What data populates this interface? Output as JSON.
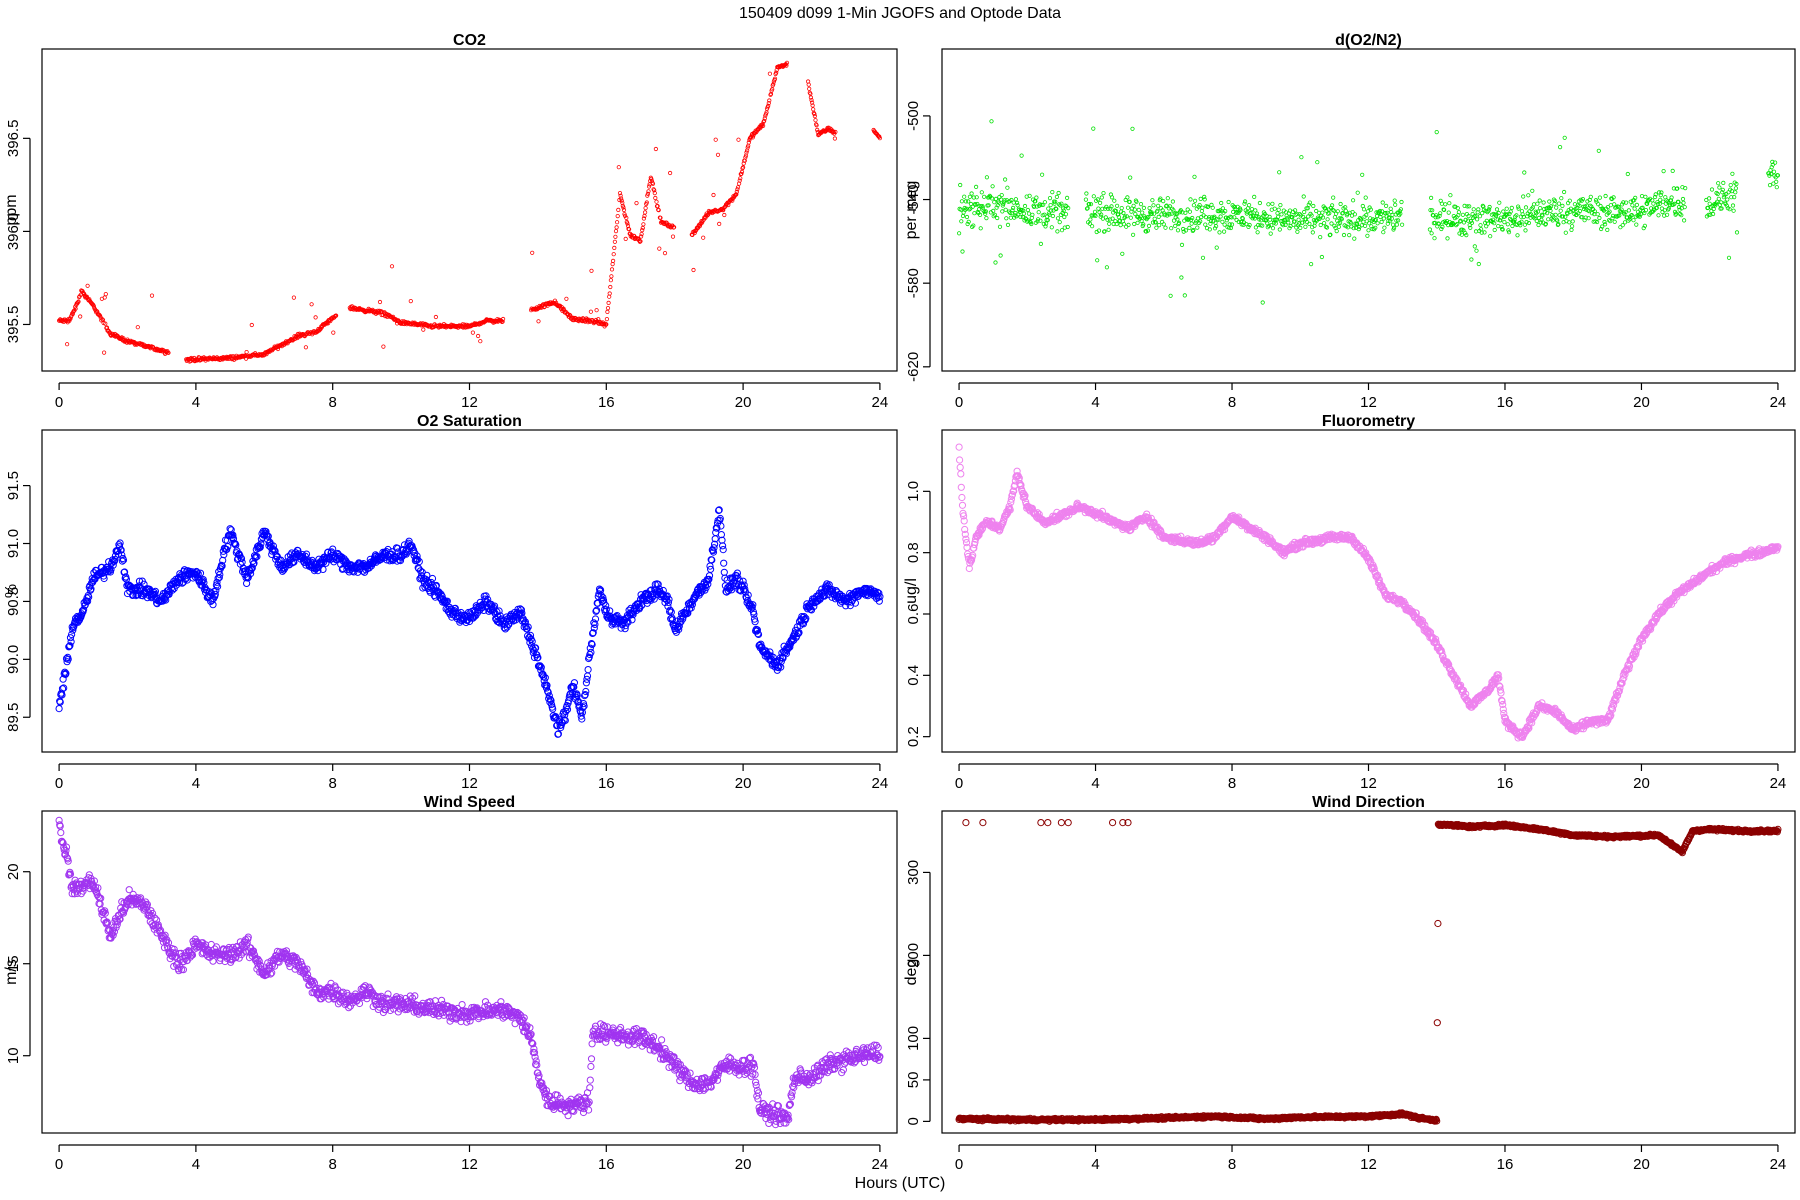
{
  "figure": {
    "title": "150409   d099   1-Min  JGOFS and Optode Data",
    "xlabel": "Hours (UTC)"
  },
  "chart_data": [
    {
      "id": "co2",
      "type": "scatter",
      "title": "CO2",
      "ylabel": "ppm",
      "color": "#ff0000",
      "marker_size": "small",
      "xlim": [
        -0.5,
        24.5
      ],
      "ylim": [
        395.25,
        396.98
      ],
      "xticks": [
        0,
        4,
        8,
        12,
        16,
        20,
        24
      ],
      "yticks": [
        395.5,
        396.0,
        396.5
      ],
      "ytick_labels": [
        "395.5",
        "396.0",
        "396.5"
      ],
      "gaps": [
        [
          3.2,
          3.7
        ],
        [
          8.1,
          8.5
        ],
        [
          13.0,
          13.8
        ],
        [
          18.0,
          18.5
        ],
        [
          21.3,
          21.9
        ],
        [
          22.7,
          23.8
        ]
      ],
      "noise": 0.008,
      "spike_rate": 0.06,
      "spike_amp": 0.25,
      "profile": [
        [
          0.0,
          395.52
        ],
        [
          0.3,
          395.52
        ],
        [
          0.55,
          395.62
        ],
        [
          0.65,
          395.68
        ],
        [
          1.0,
          395.6
        ],
        [
          1.5,
          395.45
        ],
        [
          2.0,
          395.41
        ],
        [
          3.0,
          395.36
        ],
        [
          3.2,
          395.35
        ],
        [
          3.7,
          395.31
        ],
        [
          5.0,
          395.32
        ],
        [
          6.0,
          395.34
        ],
        [
          7.0,
          395.44
        ],
        [
          7.5,
          395.46
        ],
        [
          8.1,
          395.55
        ],
        [
          8.5,
          395.59
        ],
        [
          9.5,
          395.56
        ],
        [
          10.0,
          395.51
        ],
        [
          11.0,
          395.49
        ],
        [
          12.0,
          395.49
        ],
        [
          12.5,
          395.52
        ],
        [
          13.0,
          395.52
        ],
        [
          13.8,
          395.58
        ],
        [
          14.5,
          395.62
        ],
        [
          15.0,
          395.53
        ],
        [
          15.5,
          395.52
        ],
        [
          16.0,
          395.5
        ],
        [
          16.2,
          395.85
        ],
        [
          16.4,
          396.2
        ],
        [
          16.7,
          395.98
        ],
        [
          17.0,
          395.95
        ],
        [
          17.3,
          396.3
        ],
        [
          17.6,
          396.05
        ],
        [
          18.0,
          396.02
        ],
        [
          18.5,
          395.98
        ],
        [
          19.0,
          396.1
        ],
        [
          19.4,
          396.12
        ],
        [
          19.8,
          396.2
        ],
        [
          20.2,
          396.5
        ],
        [
          20.6,
          396.58
        ],
        [
          21.0,
          396.88
        ],
        [
          21.3,
          396.9
        ],
        [
          21.9,
          396.8
        ],
        [
          22.2,
          396.52
        ],
        [
          22.5,
          396.55
        ],
        [
          22.7,
          396.53
        ],
        [
          23.8,
          396.55
        ],
        [
          24.0,
          396.5
        ]
      ]
    },
    {
      "id": "o2n2",
      "type": "scatter",
      "title": "d(O2/N2)",
      "ylabel": "per meg",
      "color": "#00e000",
      "marker_size": "small",
      "xlim": [
        -0.5,
        24.5
      ],
      "ylim": [
        -622,
        -468
      ],
      "xticks": [
        0,
        4,
        8,
        12,
        16,
        20,
        24
      ],
      "yticks": [
        -620,
        -580,
        -540,
        -500
      ],
      "ytick_labels": [
        "-620",
        "-580",
        "-540",
        "-500"
      ],
      "gaps": [
        [
          3.2,
          3.7
        ],
        [
          13.0,
          13.8
        ],
        [
          21.3,
          21.9
        ],
        [
          22.8,
          23.7
        ]
      ],
      "noise": 7,
      "spike_rate": 0.05,
      "spike_amp": 38,
      "profile": [
        [
          0.0,
          -545
        ],
        [
          1.0,
          -542
        ],
        [
          2.0,
          -545
        ],
        [
          3.2,
          -547
        ],
        [
          3.7,
          -546
        ],
        [
          6.0,
          -548
        ],
        [
          8.0,
          -547
        ],
        [
          10.0,
          -550
        ],
        [
          12.0,
          -549
        ],
        [
          13.0,
          -548
        ],
        [
          13.8,
          -549
        ],
        [
          16.0,
          -549
        ],
        [
          17.0,
          -547
        ],
        [
          18.0,
          -545
        ],
        [
          19.0,
          -546
        ],
        [
          20.0,
          -545
        ],
        [
          21.3,
          -540
        ],
        [
          21.9,
          -543
        ],
        [
          22.8,
          -537
        ],
        [
          23.7,
          -530
        ],
        [
          24.0,
          -528
        ]
      ]
    },
    {
      "id": "o2sat",
      "type": "scatter",
      "title": "O2 Saturation",
      "ylabel": "%",
      "color": "#0000ff",
      "marker_size": "large",
      "xlim": [
        -0.5,
        24.5
      ],
      "ylim": [
        89.2,
        91.98
      ],
      "xticks": [
        0,
        4,
        8,
        12,
        16,
        20,
        24
      ],
      "yticks": [
        89.5,
        90.0,
        90.5,
        91.0,
        91.5
      ],
      "ytick_labels": [
        "89.5",
        "90.0",
        "90.5",
        "91.0",
        "91.5"
      ],
      "gaps": [],
      "noise": 0.05,
      "spike_rate": 0.0,
      "spike_amp": 0.0,
      "profile": [
        [
          0.0,
          89.6
        ],
        [
          0.2,
          89.9
        ],
        [
          0.4,
          90.3
        ],
        [
          0.7,
          90.4
        ],
        [
          1.0,
          90.7
        ],
        [
          1.5,
          90.8
        ],
        [
          1.8,
          91.0
        ],
        [
          2.0,
          90.6
        ],
        [
          2.5,
          90.6
        ],
        [
          3.0,
          90.5
        ],
        [
          3.5,
          90.7
        ],
        [
          4.0,
          90.75
        ],
        [
          4.5,
          90.5
        ],
        [
          4.8,
          90.9
        ],
        [
          5.0,
          91.1
        ],
        [
          5.5,
          90.7
        ],
        [
          6.0,
          91.1
        ],
        [
          6.5,
          90.8
        ],
        [
          7.0,
          90.9
        ],
        [
          7.5,
          90.8
        ],
        [
          8.0,
          90.9
        ],
        [
          8.5,
          90.8
        ],
        [
          9.0,
          90.8
        ],
        [
          9.5,
          90.9
        ],
        [
          10.0,
          90.9
        ],
        [
          10.3,
          91.0
        ],
        [
          10.6,
          90.7
        ],
        [
          11.0,
          90.6
        ],
        [
          11.5,
          90.4
        ],
        [
          12.0,
          90.35
        ],
        [
          12.5,
          90.5
        ],
        [
          13.0,
          90.3
        ],
        [
          13.5,
          90.4
        ],
        [
          14.0,
          90.0
        ],
        [
          14.3,
          89.7
        ],
        [
          14.6,
          89.4
        ],
        [
          14.8,
          89.5
        ],
        [
          15.0,
          89.8
        ],
        [
          15.3,
          89.5
        ],
        [
          15.5,
          90.0
        ],
        [
          15.8,
          90.6
        ],
        [
          16.0,
          90.4
        ],
        [
          16.5,
          90.3
        ],
        [
          17.0,
          90.5
        ],
        [
          17.5,
          90.6
        ],
        [
          17.8,
          90.5
        ],
        [
          18.0,
          90.25
        ],
        [
          18.5,
          90.5
        ],
        [
          19.0,
          90.7
        ],
        [
          19.3,
          91.3
        ],
        [
          19.5,
          90.6
        ],
        [
          19.8,
          90.7
        ],
        [
          20.0,
          90.6
        ],
        [
          20.3,
          90.4
        ],
        [
          20.5,
          90.1
        ],
        [
          21.0,
          89.95
        ],
        [
          21.5,
          90.2
        ],
        [
          22.0,
          90.5
        ],
        [
          22.5,
          90.6
        ],
        [
          23.0,
          90.5
        ],
        [
          23.5,
          90.6
        ],
        [
          24.0,
          90.55
        ]
      ]
    },
    {
      "id": "fluor",
      "type": "scatter",
      "title": "Fluorometry",
      "ylabel": "ug/l",
      "color": "#ee82ee",
      "marker_size": "large",
      "xlim": [
        -0.5,
        24.5
      ],
      "ylim": [
        0.15,
        1.2
      ],
      "xticks": [
        0,
        4,
        8,
        12,
        16,
        20,
        24
      ],
      "yticks": [
        0.2,
        0.4,
        0.6,
        0.8,
        1.0
      ],
      "ytick_labels": [
        "0.2",
        "0.4",
        "0.6",
        "0.8",
        "1.0"
      ],
      "gaps": [],
      "noise": 0.01,
      "spike_rate": 0.0,
      "spike_amp": 0.0,
      "profile": [
        [
          0.0,
          1.15
        ],
        [
          0.1,
          0.95
        ],
        [
          0.3,
          0.75
        ],
        [
          0.5,
          0.85
        ],
        [
          0.8,
          0.9
        ],
        [
          1.2,
          0.88
        ],
        [
          1.5,
          0.95
        ],
        [
          1.7,
          1.06
        ],
        [
          2.0,
          0.95
        ],
        [
          2.5,
          0.9
        ],
        [
          3.0,
          0.92
        ],
        [
          3.5,
          0.95
        ],
        [
          4.0,
          0.93
        ],
        [
          4.5,
          0.9
        ],
        [
          5.0,
          0.88
        ],
        [
          5.5,
          0.92
        ],
        [
          6.0,
          0.85
        ],
        [
          7.0,
          0.83
        ],
        [
          7.5,
          0.85
        ],
        [
          8.0,
          0.92
        ],
        [
          8.5,
          0.88
        ],
        [
          9.0,
          0.85
        ],
        [
          9.5,
          0.8
        ],
        [
          10.0,
          0.83
        ],
        [
          11.0,
          0.85
        ],
        [
          11.5,
          0.85
        ],
        [
          12.0,
          0.78
        ],
        [
          12.5,
          0.66
        ],
        [
          13.0,
          0.64
        ],
        [
          13.5,
          0.58
        ],
        [
          14.0,
          0.5
        ],
        [
          14.5,
          0.4
        ],
        [
          15.0,
          0.3
        ],
        [
          15.5,
          0.35
        ],
        [
          15.8,
          0.4
        ],
        [
          16.0,
          0.25
        ],
        [
          16.5,
          0.2
        ],
        [
          17.0,
          0.3
        ],
        [
          17.5,
          0.28
        ],
        [
          18.0,
          0.22
        ],
        [
          18.5,
          0.25
        ],
        [
          19.0,
          0.25
        ],
        [
          19.5,
          0.4
        ],
        [
          20.0,
          0.52
        ],
        [
          20.5,
          0.6
        ],
        [
          21.0,
          0.66
        ],
        [
          21.5,
          0.7
        ],
        [
          22.0,
          0.74
        ],
        [
          22.5,
          0.77
        ],
        [
          23.0,
          0.79
        ],
        [
          23.5,
          0.8
        ],
        [
          24.0,
          0.82
        ]
      ]
    },
    {
      "id": "wspd",
      "type": "scatter",
      "title": "Wind Speed",
      "ylabel": "m/s",
      "color": "#a034f0",
      "marker_size": "large",
      "xlim": [
        -0.5,
        24.5
      ],
      "ylim": [
        5.8,
        23.3
      ],
      "xticks": [
        0,
        4,
        8,
        12,
        16,
        20,
        24
      ],
      "yticks": [
        10,
        15,
        20
      ],
      "ytick_labels": [
        "10",
        "15",
        "20"
      ],
      "gaps": [],
      "noise": 0.4,
      "spike_rate": 0.0,
      "spike_amp": 0.0,
      "profile": [
        [
          0.0,
          22.5
        ],
        [
          0.2,
          21.0
        ],
        [
          0.4,
          19.0
        ],
        [
          1.0,
          19.5
        ],
        [
          1.5,
          16.5
        ],
        [
          2.0,
          18.5
        ],
        [
          2.5,
          18.2
        ],
        [
          3.0,
          16.5
        ],
        [
          3.5,
          15.0
        ],
        [
          4.0,
          16.0
        ],
        [
          4.5,
          15.5
        ],
        [
          5.0,
          15.5
        ],
        [
          5.5,
          16.0
        ],
        [
          6.0,
          14.5
        ],
        [
          6.5,
          15.5
        ],
        [
          7.0,
          15.0
        ],
        [
          7.5,
          13.5
        ],
        [
          8.0,
          13.5
        ],
        [
          8.5,
          13.0
        ],
        [
          9.0,
          13.5
        ],
        [
          9.5,
          12.8
        ],
        [
          10.0,
          12.8
        ],
        [
          11.0,
          12.5
        ],
        [
          12.0,
          12.3
        ],
        [
          13.0,
          12.5
        ],
        [
          13.5,
          12.0
        ],
        [
          13.8,
          11.0
        ],
        [
          14.0,
          9.0
        ],
        [
          14.3,
          7.5
        ],
        [
          15.0,
          7.3
        ],
        [
          15.5,
          7.5
        ],
        [
          15.6,
          11.3
        ],
        [
          16.0,
          11.2
        ],
        [
          17.0,
          11.0
        ],
        [
          17.5,
          10.5
        ],
        [
          18.0,
          9.5
        ],
        [
          18.5,
          8.5
        ],
        [
          19.0,
          8.5
        ],
        [
          19.5,
          9.5
        ],
        [
          20.0,
          9.4
        ],
        [
          20.3,
          9.5
        ],
        [
          20.5,
          7.0
        ],
        [
          21.0,
          6.8
        ],
        [
          21.3,
          6.5
        ],
        [
          21.5,
          8.8
        ],
        [
          22.0,
          8.8
        ],
        [
          22.5,
          9.5
        ],
        [
          23.0,
          9.8
        ],
        [
          24.0,
          10.2
        ]
      ]
    },
    {
      "id": "wdir",
      "type": "scatter",
      "title": "Wind Direction",
      "ylabel": "deg",
      "color": "#8b0000",
      "marker_size": "large",
      "xlim": [
        -0.5,
        24.5
      ],
      "ylim": [
        -14,
        374
      ],
      "xticks": [
        0,
        4,
        8,
        12,
        16,
        20,
        24
      ],
      "yticks": [
        0,
        50,
        100,
        200,
        300
      ],
      "ytick_labels": [
        "0",
        "50",
        "100",
        "200",
        "300"
      ],
      "gaps": [],
      "noise": 1.2,
      "spike_rate": 0.0,
      "spike_amp": 0.0,
      "profile": [
        [
          0.0,
          3
        ],
        [
          2.0,
          2
        ],
        [
          4.0,
          2
        ],
        [
          6.0,
          4
        ],
        [
          7.5,
          6
        ],
        [
          9.0,
          3
        ],
        [
          10.0,
          5
        ],
        [
          12.0,
          6
        ],
        [
          13.0,
          9
        ],
        [
          13.5,
          4
        ],
        [
          14.0,
          1
        ],
        [
          14.05,
          358
        ],
        [
          15.0,
          355
        ],
        [
          16.0,
          357
        ],
        [
          17.0,
          352
        ],
        [
          18.0,
          345
        ],
        [
          19.0,
          343
        ],
        [
          20.0,
          344
        ],
        [
          20.5,
          345
        ],
        [
          21.0,
          330
        ],
        [
          21.2,
          325
        ],
        [
          21.5,
          350
        ],
        [
          22.0,
          352
        ],
        [
          23.0,
          350
        ],
        [
          24.0,
          350
        ]
      ],
      "outliers": [
        [
          0.2,
          360
        ],
        [
          0.7,
          360
        ],
        [
          2.4,
          360
        ],
        [
          2.6,
          360
        ],
        [
          3.0,
          360
        ],
        [
          3.2,
          360
        ],
        [
          4.5,
          360
        ],
        [
          4.8,
          360
        ],
        [
          4.95,
          360
        ]
      ]
    }
  ]
}
